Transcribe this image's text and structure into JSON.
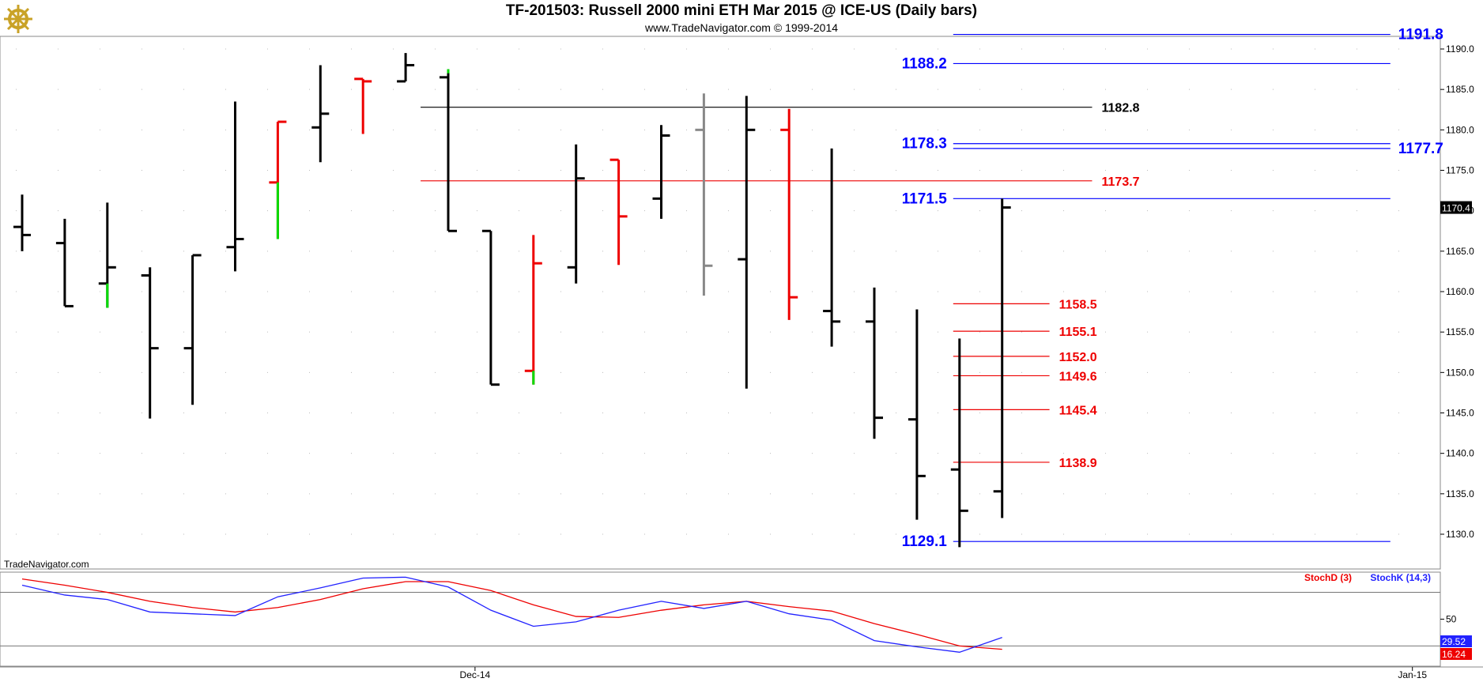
{
  "header": {
    "title": "TF-201503:  Russell 2000 mini ETH Mar 2015 @ ICE-US  (Daily bars)",
    "subtitle": "www.TradeNavigator.com © 1999-2014",
    "watermark": "TradeNavigator.com",
    "logo_icon": "ship-wheel-icon"
  },
  "chart_data": [
    {
      "type": "ohlc",
      "ylim": [
        1126,
        1193
      ],
      "y_ticks": [
        "1130.0",
        "1135.0",
        "1140.0",
        "1145.0",
        "1150.0",
        "1155.0",
        "1160.0",
        "1165.0",
        "1170.0",
        "1175.0",
        "1180.0",
        "1185.0",
        "1190.0"
      ],
      "x_ticks": [
        {
          "label": "Dec-14",
          "bar": 11
        },
        {
          "label": "Jan-15",
          "bar": 33
        }
      ],
      "last_price": "1170.4",
      "grid": "dotted",
      "colors": {
        "up": "#000000",
        "red": "#ee0000",
        "green": "#00dd00",
        "gray": "#888888",
        "blue": "#0000ff"
      },
      "bars": [
        {
          "o": 1168.0,
          "h": 1172.0,
          "l": 1165.0,
          "c": 1167.0,
          "color": "black"
        },
        {
          "o": 1166.0,
          "h": 1169.0,
          "l": 1158.2,
          "c": 1158.2,
          "color": "black"
        },
        {
          "o": 1161.0,
          "h": 1171.0,
          "l": 1158.0,
          "c": 1163.0,
          "color": "black",
          "tail_color": "green",
          "tail_from": 1161.0
        },
        {
          "o": 1162.0,
          "h": 1163.0,
          "l": 1144.3,
          "c": 1153.0,
          "color": "black"
        },
        {
          "o": 1153.0,
          "h": 1164.5,
          "l": 1146.0,
          "c": 1164.5,
          "color": "black"
        },
        {
          "o": 1165.5,
          "h": 1183.5,
          "l": 1162.5,
          "c": 1166.5,
          "color": "black"
        },
        {
          "o": 1173.5,
          "h": 1181.0,
          "l": 1166.5,
          "c": 1181.0,
          "color": "red",
          "tail_color": "green",
          "tail_from": 1173.5
        },
        {
          "o": 1180.3,
          "h": 1188.0,
          "l": 1176.0,
          "c": 1182.0,
          "color": "black"
        },
        {
          "o": 1186.3,
          "h": 1186.3,
          "l": 1179.5,
          "c": 1186.0,
          "color": "red"
        },
        {
          "o": 1186.0,
          "h": 1189.5,
          "l": 1186.0,
          "c": 1188.0,
          "color": "black"
        },
        {
          "o": 1186.5,
          "h": 1187.5,
          "l": 1167.5,
          "c": 1167.5,
          "color": "black",
          "tail_color": "green",
          "tail_from": 1187.0
        },
        {
          "o": 1167.5,
          "h": 1167.5,
          "l": 1148.5,
          "c": 1148.5,
          "color": "black"
        },
        {
          "o": 1150.2,
          "h": 1167.0,
          "l": 1148.5,
          "c": 1163.5,
          "color": "red",
          "tail_color": "green",
          "tail_from": 1150.2
        },
        {
          "o": 1163.0,
          "h": 1178.2,
          "l": 1161.0,
          "c": 1174.0,
          "color": "black"
        },
        {
          "o": 1176.3,
          "h": 1176.3,
          "l": 1163.3,
          "c": 1169.3,
          "color": "red"
        },
        {
          "o": 1171.5,
          "h": 1180.6,
          "l": 1169.0,
          "c": 1179.3,
          "color": "black"
        },
        {
          "o": 1180.0,
          "h": 1184.5,
          "l": 1159.5,
          "c": 1163.2,
          "color": "gray"
        },
        {
          "o": 1164.0,
          "h": 1184.2,
          "l": 1148.0,
          "c": 1180.0,
          "color": "black"
        },
        {
          "o": 1180.0,
          "h": 1182.6,
          "l": 1156.5,
          "c": 1159.3,
          "color": "red"
        },
        {
          "o": 1157.6,
          "h": 1177.7,
          "l": 1153.2,
          "c": 1156.3,
          "color": "black"
        },
        {
          "o": 1156.3,
          "h": 1160.5,
          "l": 1141.8,
          "c": 1144.4,
          "color": "black"
        },
        {
          "o": 1144.2,
          "h": 1157.8,
          "l": 1131.8,
          "c": 1137.2,
          "color": "black"
        },
        {
          "o": 1138.0,
          "h": 1154.2,
          "l": 1128.4,
          "c": 1132.9,
          "color": "black"
        },
        {
          "o": 1135.3,
          "h": 1171.5,
          "l": 1132.0,
          "c": 1170.4,
          "color": "black"
        }
      ],
      "levels": [
        {
          "value": 1191.8,
          "label": "1191.8",
          "color": "#0000ff",
          "from": 22,
          "to": 32,
          "label_pos": "right"
        },
        {
          "value": 1188.2,
          "label": "1188.2",
          "color": "#0000ff",
          "from": 22,
          "to": 32,
          "label_pos": "left"
        },
        {
          "value": 1182.8,
          "label": "1182.8",
          "color": "#000000",
          "from": 9.5,
          "to": 25,
          "label_pos": "right"
        },
        {
          "value": 1178.3,
          "label": "1178.3",
          "color": "#0000ff",
          "from": 22,
          "to": 32,
          "label_pos": "left"
        },
        {
          "value": 1177.7,
          "label": "1177.7",
          "color": "#0000ff",
          "from": 22,
          "to": 32,
          "label_pos": "right"
        },
        {
          "value": 1173.7,
          "label": "1173.7",
          "color": "#ee0000",
          "from": 9.5,
          "to": 25,
          "label_pos": "right"
        },
        {
          "value": 1171.5,
          "label": "1171.5",
          "color": "#0000ff",
          "from": 22,
          "to": 32,
          "label_pos": "left"
        },
        {
          "value": 1158.5,
          "label": "1158.5",
          "color": "#ee0000",
          "from": 22,
          "to": 24,
          "label_pos": "right"
        },
        {
          "value": 1155.1,
          "label": "1155.1",
          "color": "#ee0000",
          "from": 22,
          "to": 24,
          "label_pos": "right"
        },
        {
          "value": 1152.0,
          "label": "1152.0",
          "color": "#ee0000",
          "from": 22,
          "to": 24,
          "label_pos": "right"
        },
        {
          "value": 1149.6,
          "label": "1149.6",
          "color": "#ee0000",
          "from": 22,
          "to": 24,
          "label_pos": "right"
        },
        {
          "value": 1145.4,
          "label": "1145.4",
          "color": "#ee0000",
          "from": 22,
          "to": 24,
          "label_pos": "right"
        },
        {
          "value": 1138.9,
          "label": "1138.9",
          "color": "#ee0000",
          "from": 22,
          "to": 24,
          "label_pos": "right"
        },
        {
          "value": 1129.1,
          "label": "1129.1",
          "color": "#0000ff",
          "from": 22,
          "to": 32,
          "label_pos": "left"
        }
      ]
    },
    {
      "type": "line",
      "ylim": [
        0,
        100
      ],
      "y_ticks": [
        "50"
      ],
      "ref_lines": [
        80,
        20
      ],
      "series": [
        {
          "name": "StochD (3)",
          "color": "#ee0000",
          "last": "16.24",
          "values": [
            95,
            88,
            80,
            70,
            63,
            58,
            63,
            72,
            84,
            92,
            92,
            82,
            66,
            53,
            52,
            60,
            66,
            70,
            64,
            59,
            45,
            33,
            20,
            16.24
          ]
        },
        {
          "name": "StochK (14,3)",
          "color": "#2222ff",
          "last": "29.52",
          "values": [
            88,
            77,
            72,
            58,
            56,
            54,
            75,
            85,
            96,
            97,
            86,
            60,
            42,
            47,
            60,
            70,
            62,
            70,
            56,
            49,
            26,
            19,
            13,
            29.52
          ]
        }
      ]
    }
  ]
}
